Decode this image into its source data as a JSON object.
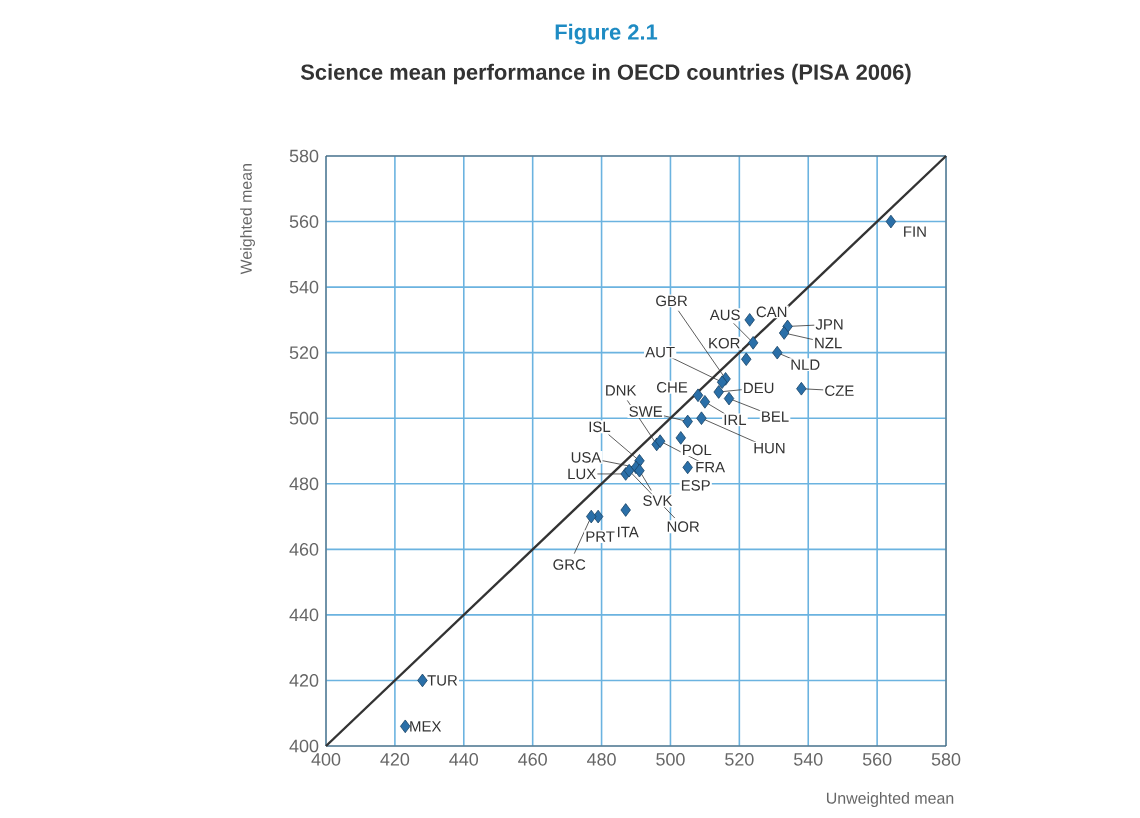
{
  "chart_data": {
    "type": "scatter",
    "title": "Figure 2.1",
    "subtitle": "Science mean performance in OECD countries (PISA 2006)",
    "xlabel": "Unweighted mean",
    "ylabel": "Weighted mean",
    "xlim": [
      400,
      580
    ],
    "ylim": [
      400,
      580
    ],
    "xticks": [
      400,
      420,
      440,
      460,
      480,
      500,
      520,
      540,
      560,
      580
    ],
    "yticks": [
      400,
      420,
      440,
      460,
      480,
      500,
      520,
      540,
      560,
      580
    ],
    "grid": true,
    "series": [
      {
        "marker": "diamond",
        "color": "#2a6fa8",
        "x": [
          564,
          523,
          524,
          522,
          534,
          533,
          531,
          538,
          516,
          515,
          514,
          517,
          508,
          510,
          505,
          509,
          496,
          503,
          497,
          505,
          491,
          490,
          487,
          491,
          488,
          487,
          479,
          477,
          428,
          423
        ],
        "values": [
          560,
          530,
          523,
          518,
          528,
          526,
          520,
          509,
          512,
          511,
          508,
          506,
          507,
          505,
          499,
          500,
          492,
          494,
          493,
          485,
          487,
          485,
          483,
          484,
          484,
          472,
          470,
          470,
          420,
          406
        ],
        "value_labels": [
          "FIN",
          "CAN",
          "AUS",
          "KOR",
          "JPN",
          "NZL",
          "NLD",
          "CZE",
          "GBR",
          "AUT",
          "DEU",
          "BEL",
          "CHE",
          "IRL",
          "SWE",
          "HUN",
          "DNK",
          "POL",
          "FRA",
          "ESP",
          "ISL",
          "USA",
          "LUX",
          "SVK",
          "NOR",
          "ITA",
          "PRT",
          "GRC",
          "TUR",
          "MEX"
        ]
      },
      {
        "type": "line",
        "marker": "none",
        "color": "#333333",
        "x": [
          400,
          580
        ],
        "values": [
          400,
          580
        ]
      }
    ]
  }
}
